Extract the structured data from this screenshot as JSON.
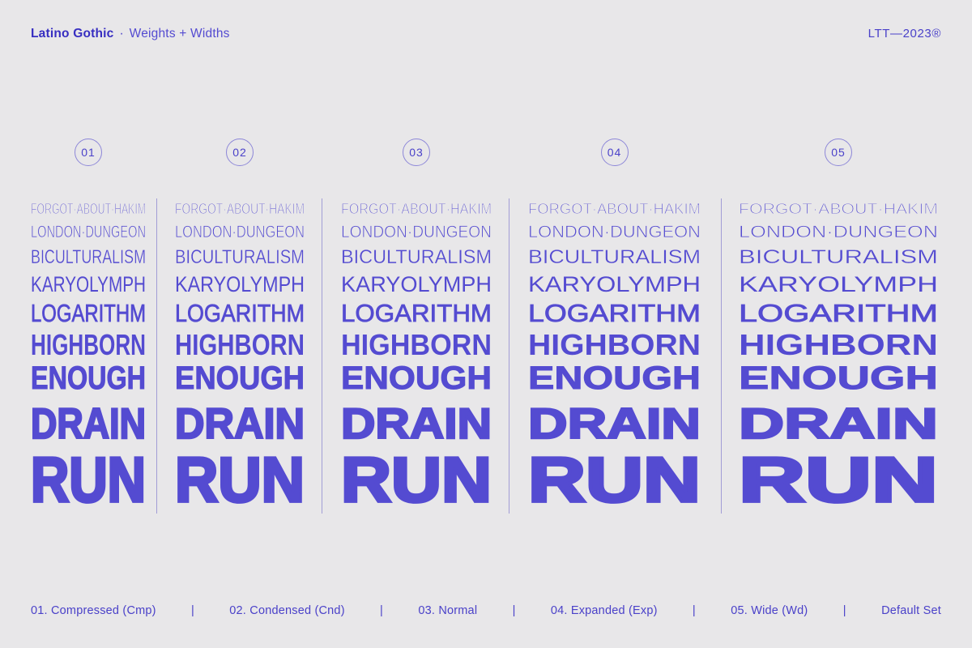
{
  "header": {
    "brand": "Latino Gothic",
    "separator": "·",
    "subtitle": "Weights + Widths",
    "stamp": "LTT—2023®"
  },
  "specimen": {
    "words": [
      "FORGOT·ABOUT·HAKIM",
      "LONDON·DUNGEON",
      "BICULTURALISM",
      "KARYOLYMPH",
      "LOGARITHM",
      "HIGHBORN",
      "ENOUGH",
      "DRAIN",
      "RUN"
    ],
    "columns": [
      {
        "num": "01",
        "footer_label": "01. Compressed (Cmp)"
      },
      {
        "num": "02",
        "footer_label": "02. Condensed (Cnd)"
      },
      {
        "num": "03",
        "footer_label": "03. Normal"
      },
      {
        "num": "04",
        "footer_label": "04. Expanded (Exp)"
      },
      {
        "num": "05",
        "footer_label": "05. Wide (Wd)"
      }
    ]
  },
  "footer": {
    "separator": "|",
    "extra_label": "Default Set"
  },
  "colors": {
    "background": "#e8e7e9",
    "ink": "#544bd1",
    "ink_strong": "#372ec1",
    "divider": "#a29dd6"
  }
}
